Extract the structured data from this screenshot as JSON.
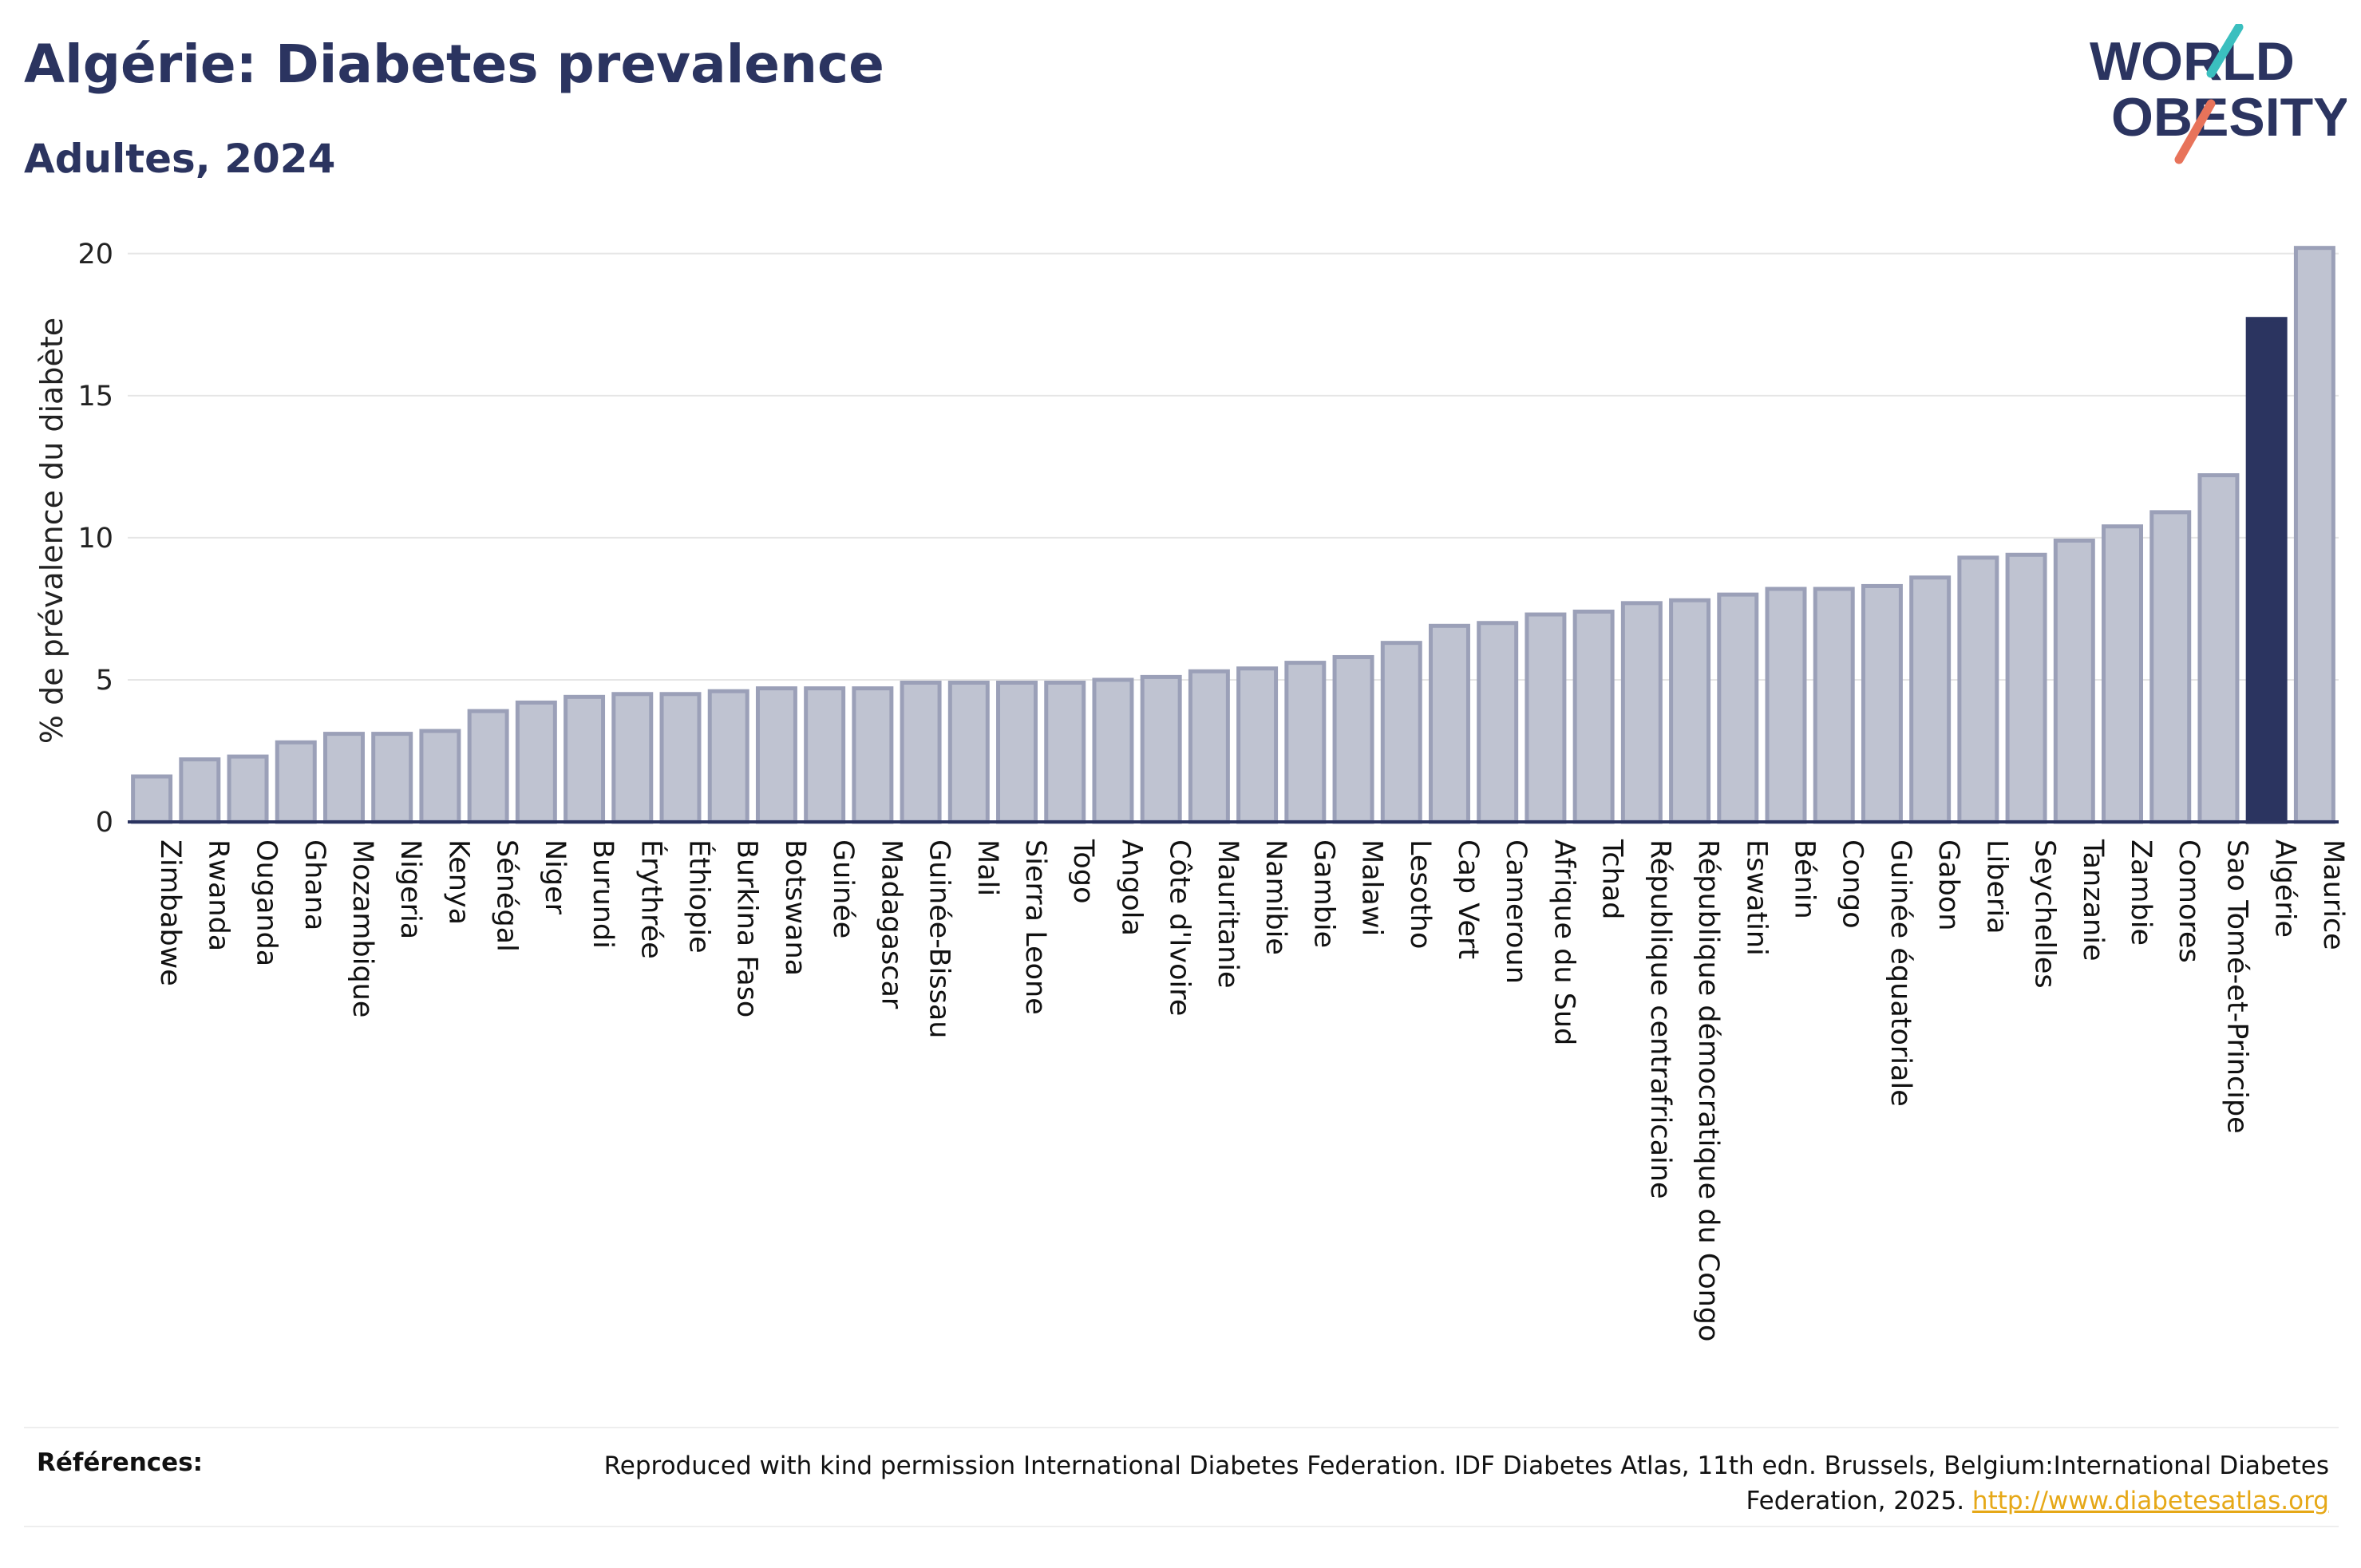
{
  "header": {
    "title": "Algérie: Diabetes prevalence",
    "subtitle": "Adultes, 2024"
  },
  "logo": {
    "line1": "WORLD",
    "line2": "OBESITY",
    "colors": {
      "text": "#2b3460",
      "slash_top": "#3bbfbf",
      "slash_bottom": "#e8735a"
    }
  },
  "chart_data": {
    "type": "bar",
    "ylabel": "% de prévalence du diabète",
    "xlabel": "",
    "ylim": [
      0,
      20.5
    ],
    "yticks": [
      0,
      5,
      10,
      15,
      20
    ],
    "grid": true,
    "categories": [
      "Zimbabwe",
      "Rwanda",
      "Ouganda",
      "Ghana",
      "Mozambique",
      "Nigeria",
      "Kenya",
      "Sénégal",
      "Niger",
      "Burundi",
      "Érythrée",
      "Éthiopie",
      "Burkina Faso",
      "Botswana",
      "Guinée",
      "Madagascar",
      "Guinée-Bissau",
      "Mali",
      "Sierra Leone",
      "Togo",
      "Angola",
      "Côte d'Ivoire",
      "Mauritanie",
      "Namibie",
      "Gambie",
      "Malawi",
      "Lesotho",
      "Cap Vert",
      "Cameroun",
      "Afrique du Sud",
      "Tchad",
      "République centrafricaine",
      "République démocratique du Congo",
      "Eswatini",
      "Bénin",
      "Congo",
      "Guinée équatoriale",
      "Gabon",
      "Liberia",
      "Seychelles",
      "Tanzanie",
      "Zambie",
      "Comores",
      "Sao Tomé-et-Principe",
      "Algérie",
      "Maurice"
    ],
    "values": [
      1.6,
      2.2,
      2.3,
      2.8,
      3.1,
      3.1,
      3.2,
      3.9,
      4.2,
      4.4,
      4.5,
      4.5,
      4.6,
      4.7,
      4.7,
      4.7,
      4.9,
      4.9,
      4.9,
      4.9,
      5.0,
      5.1,
      5.3,
      5.4,
      5.6,
      5.8,
      6.3,
      6.9,
      7.0,
      7.3,
      7.4,
      7.7,
      7.8,
      8.0,
      8.2,
      8.2,
      8.3,
      8.6,
      9.3,
      9.4,
      9.9,
      10.4,
      10.9,
      12.2,
      17.7,
      20.2
    ],
    "highlight": "Algérie",
    "colors": {
      "bar": "#bfc3d1",
      "bar_edge": "#9ba0b8",
      "highlight": "#2b3460",
      "axis": "#2b3460",
      "grid": "#e6e6e6"
    }
  },
  "footer": {
    "label": "Références:",
    "text": "Reproduced with kind permission International Diabetes Federation. IDF Diabetes Atlas, 11th edn. Brussels, Belgium:International Diabetes Federation, 2025.",
    "link": "http://www.diabetesatlas.org"
  }
}
